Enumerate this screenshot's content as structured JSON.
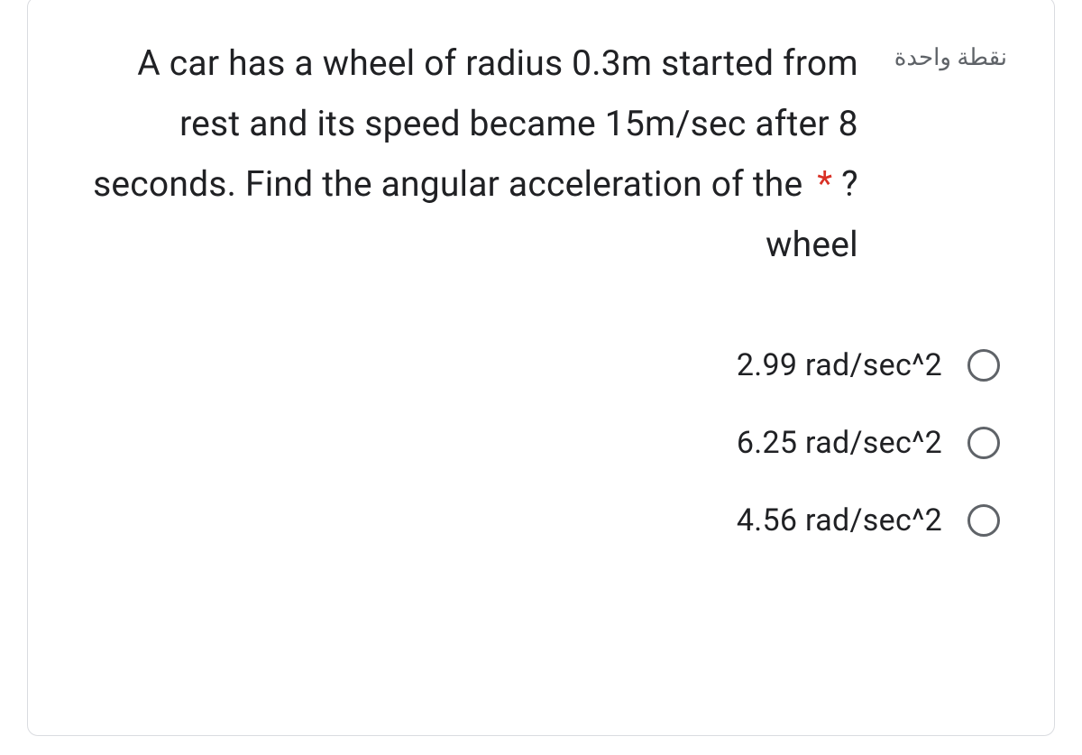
{
  "question": {
    "points_label": "نقطة واحدة",
    "text_main": "A car has a wheel of radius 0.3m started from rest and its speed became 15m/sec after 8 seconds. Find the angular acceleration of the ",
    "text_tail": "?wheel",
    "required_mark": "*"
  },
  "options": [
    {
      "label": "2.99 rad/sec^2"
    },
    {
      "label": "6.25 rad/sec^2"
    },
    {
      "label": "4.56 rad/sec^2"
    }
  ],
  "colors": {
    "card_border": "#dadce0",
    "text_primary": "#202124",
    "text_secondary": "#5f6368",
    "required": "#d93025",
    "radio_border": "#5f6368",
    "background": "#ffffff"
  }
}
